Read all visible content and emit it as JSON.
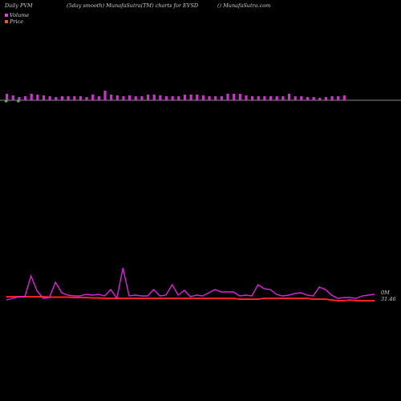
{
  "header": {
    "left": "Daily PVM",
    "middle": "(5day smooth) MunafaSutra(TM) charts for EVSD",
    "right": "() MunafaSutra.com"
  },
  "legend": {
    "volume_label": "Volume",
    "price_label": "Price",
    "volume_color": "#e040e0",
    "price_color": "#e06020"
  },
  "colors": {
    "background": "#000000",
    "volume_bar": "#cc33cc",
    "volume_bar_down": "#44cc44",
    "pvm_line": "#dd22dd",
    "price_line": "#ff2222",
    "baseline": "#bbbbbb"
  },
  "chart_data": {
    "type": "bar",
    "volume_bars": [
      8,
      6,
      4,
      5,
      8,
      7,
      6,
      5,
      4,
      5,
      5,
      5,
      5,
      4,
      7,
      5,
      12,
      7,
      6,
      5,
      6,
      5,
      5,
      7,
      7,
      6,
      5,
      5,
      5,
      7,
      7,
      7,
      6,
      5,
      5,
      5,
      8,
      8,
      8,
      6,
      5,
      5,
      5,
      5,
      5,
      5,
      8,
      5,
      5,
      4,
      4,
      3,
      4,
      5,
      5,
      6
    ],
    "volume_bar_down_index": [
      0,
      2
    ],
    "pvm_line": [
      3,
      5,
      7,
      7,
      33,
      14,
      5,
      6,
      25,
      12,
      9,
      8,
      8,
      10,
      9,
      10,
      8,
      16,
      5,
      43,
      8,
      9,
      8,
      8,
      16,
      8,
      9,
      22,
      9,
      15,
      7,
      9,
      8,
      12,
      16,
      13,
      13,
      13,
      8,
      9,
      8,
      22,
      17,
      16,
      10,
      8,
      9,
      11,
      12,
      9,
      8,
      19,
      16,
      9,
      5,
      6,
      6,
      5,
      8,
      9,
      10
    ],
    "price_line": [
      7,
      7,
      7,
      7,
      7,
      7,
      7,
      6.5,
      6.5,
      6.5,
      6.5,
      6,
      6,
      6,
      5.5,
      5.5,
      5,
      5,
      5,
      5,
      5,
      5,
      5,
      5,
      5,
      5,
      5,
      5,
      5,
      5,
      5,
      5,
      5,
      5,
      5,
      5,
      5,
      5,
      4,
      4,
      4,
      4,
      5,
      5,
      5,
      5,
      5,
      5,
      5,
      5,
      4,
      4,
      4,
      3,
      2,
      2,
      3,
      2,
      2,
      2,
      2
    ],
    "labels": {
      "volume_right": "0M",
      "price_right": "31.46"
    }
  }
}
